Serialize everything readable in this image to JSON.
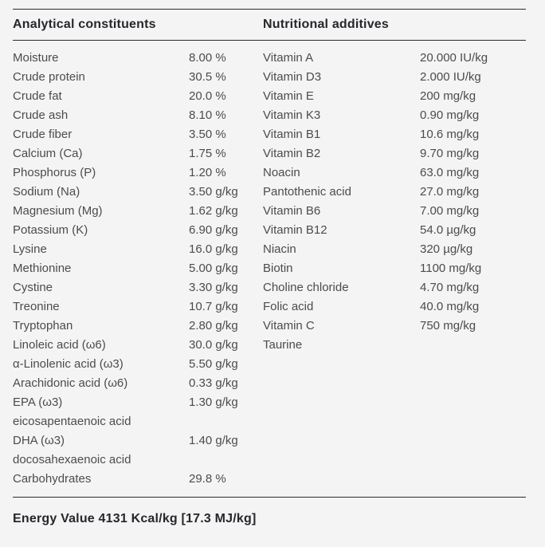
{
  "page": {
    "background_color": "#f4f4f4",
    "text_color": "#4c4c50",
    "heading_color": "#26262c",
    "rule_color": "#2b2b2e"
  },
  "left_section": {
    "title": "Analytical constituents",
    "rows": [
      {
        "label": "Moisture",
        "value": "8.00 %"
      },
      {
        "label": "Crude protein",
        "value": "30.5 %"
      },
      {
        "label": "Crude fat",
        "value": "20.0 %"
      },
      {
        "label": "Crude ash",
        "value": "8.10 %"
      },
      {
        "label": "Crude fiber",
        "value": "3.50 %"
      },
      {
        "label": "Calcium (Ca)",
        "value": "1.75 %"
      },
      {
        "label": "Phosphorus (P)",
        "value": "1.20 %"
      },
      {
        "label": "Sodium (Na)",
        "value": "3.50 g/kg"
      },
      {
        "label": "Magnesium (Mg)",
        "value": "1.62 g/kg"
      },
      {
        "label": "Potassium (K)",
        "value": "6.90 g/kg"
      },
      {
        "label": "Lysine",
        "value": "16.0 g/kg"
      },
      {
        "label": "Methionine",
        "value": "5.00 g/kg"
      },
      {
        "label": "Cystine",
        "value": "3.30 g/kg"
      },
      {
        "label": "Treonine",
        "value": "10.7 g/kg"
      },
      {
        "label": "Tryptophan",
        "value": "2.80 g/kg"
      },
      {
        "label": "Linoleic acid (ω6)",
        "value": "30.0 g/kg"
      },
      {
        "label": "α-Linolenic acid (ω3)",
        "value": "5.50 g/kg"
      },
      {
        "label": "Arachidonic acid (ω6)",
        "value": "0.33 g/kg"
      },
      {
        "label": "EPA (ω3)",
        "value": "1.30 g/kg"
      },
      {
        "label": "eicosapentaenoic acid",
        "value": ""
      },
      {
        "label": "DHA (ω3)",
        "value": "1.40 g/kg"
      },
      {
        "label": "docosahexaenoic acid",
        "value": ""
      },
      {
        "label": "Carbohydrates",
        "value": "29.8 %"
      }
    ]
  },
  "right_section": {
    "title": "Nutritional additives",
    "rows": [
      {
        "label": "Vitamin A",
        "value": "20.000 IU/kg"
      },
      {
        "label": "Vitamin D3",
        "value": "2.000 IU/kg"
      },
      {
        "label": "Vitamin E",
        "value": "200 mg/kg"
      },
      {
        "label": "Vitamin K3",
        "value": "0.90 mg/kg"
      },
      {
        "label": "Vitamin B1",
        "value": "10.6 mg/kg"
      },
      {
        "label": "Vitamin B2",
        "value": "9.70 mg/kg"
      },
      {
        "label": "Noacin",
        "value": "63.0 mg/kg"
      },
      {
        "label": "Pantothenic acid",
        "value": "27.0 mg/kg"
      },
      {
        "label": "Vitamin B6",
        "value": "7.00 mg/kg"
      },
      {
        "label": "Vitamin B12",
        "value": "54.0 µg/kg"
      },
      {
        "label": "Niacin",
        "value": "320 µg/kg"
      },
      {
        "label": "Biotin",
        "value": "1100 mg/kg"
      },
      {
        "label": "Choline chloride",
        "value": "4.70 mg/kg"
      },
      {
        "label": "Folic acid",
        "value": "40.0 mg/kg"
      },
      {
        "label": "Vitamin C",
        "value": "750 mg/kg"
      },
      {
        "label": "Taurine",
        "value": ""
      }
    ]
  },
  "footer": {
    "energy_value": "Energy Value 4131 Kcal/kg [17.3 MJ/kg]"
  }
}
